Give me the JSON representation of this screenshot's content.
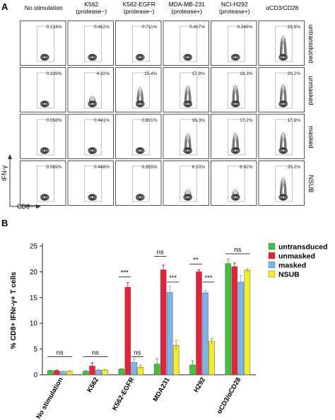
{
  "panel_a": {
    "label": "A",
    "columns": [
      {
        "line1": "No stimulation",
        "line2": ""
      },
      {
        "line1": "K562",
        "line2": "(protease−)"
      },
      {
        "line1": "K562-EGFR",
        "line2": "(protease−)"
      },
      {
        "line1": "MDA-MB-231",
        "line2": "(protease+)"
      },
      {
        "line1": "NCI-H292",
        "line2": "(protease+)"
      },
      {
        "line1": "αCD3/CD28",
        "line2": ""
      }
    ],
    "rows": [
      "untransduced",
      "unmasked",
      "masked",
      "NSUB"
    ],
    "percentages": [
      [
        "0.134%",
        "0.452%",
        "0.711%",
        "0.407%",
        "0.246%",
        "23.8%"
      ],
      [
        "0.109%",
        "4.20%",
        "15.4%",
        "17.8%",
        "19.3%",
        "20.2%"
      ],
      [
        "0.058%",
        "0.441%",
        "0.801%",
        "16.3%",
        "17.2%",
        "17.8%"
      ],
      [
        "0.089%",
        "0.448%",
        "0.355%",
        "6.33%",
        "6.92%",
        "20.2%"
      ]
    ],
    "y_axis_label": "IFN-γ",
    "x_axis_label": "CD8"
  },
  "panel_b": {
    "label": "B",
    "chart_data": {
      "type": "bar",
      "ylabel": "% CD8+ IFNr-γ+ T cells",
      "ylim": [
        0,
        25
      ],
      "yticks": [
        0,
        5,
        10,
        15,
        20,
        25
      ],
      "grid": false,
      "legend_position": "top-right",
      "categories": [
        "No stimulation",
        "K562",
        "K562-EGFR",
        "MDA231",
        "H292",
        "αCD3/αCD28"
      ],
      "series": [
        {
          "name": "untransduced",
          "color": "#3ec43a",
          "values": [
            0.8,
            0.7,
            1.1,
            2.1,
            1.9,
            21.6
          ],
          "errors": [
            0.1,
            0.1,
            0.1,
            1.0,
            0.8,
            0.9
          ]
        },
        {
          "name": "unmasked",
          "color": "#e8213a",
          "values": [
            0.8,
            1.7,
            17.0,
            20.4,
            20.0,
            21.0
          ],
          "errors": [
            0.1,
            0.6,
            0.9,
            0.9,
            0.4,
            0.7
          ]
        },
        {
          "name": "masked",
          "color": "#7ab4ec",
          "values": [
            0.6,
            0.9,
            2.4,
            16.0,
            15.9,
            18.0
          ],
          "errors": [
            0.1,
            0.1,
            0.8,
            1.2,
            0.4,
            1.3
          ]
        },
        {
          "name": "NSUB",
          "color": "#f5ec2a",
          "values": [
            0.7,
            0.9,
            1.5,
            5.7,
            6.5,
            20.3
          ],
          "errors": [
            0.1,
            0.1,
            0.4,
            1.0,
            0.6,
            0.3
          ]
        }
      ],
      "annotations": [
        {
          "text": "ns",
          "category": 0,
          "from_series": 0,
          "to_series": 3,
          "y": 3.5
        },
        {
          "text": "ns",
          "category": 1,
          "from_series": 0,
          "to_series": 3,
          "y": 3.5
        },
        {
          "text": "***",
          "category": 2,
          "from_series": 0,
          "to_series": 1,
          "y": 19.0
        },
        {
          "text": "ns",
          "category": 2,
          "from_series": 2,
          "to_series": 3,
          "y": 3.5
        },
        {
          "text": "ns",
          "category": 3,
          "from_series": 0,
          "to_series": 1,
          "y": 23.0
        },
        {
          "text": "***",
          "category": 3,
          "from_series": 2,
          "to_series": 3,
          "y": 18.0
        },
        {
          "text": "**",
          "category": 4,
          "from_series": 0,
          "to_series": 1,
          "y": 21.5
        },
        {
          "text": "***",
          "category": 4,
          "from_series": 2,
          "to_series": 3,
          "y": 18.0
        },
        {
          "text": "ns",
          "category": 5,
          "from_series": 0,
          "to_series": 3,
          "y": 23.5
        }
      ]
    }
  }
}
